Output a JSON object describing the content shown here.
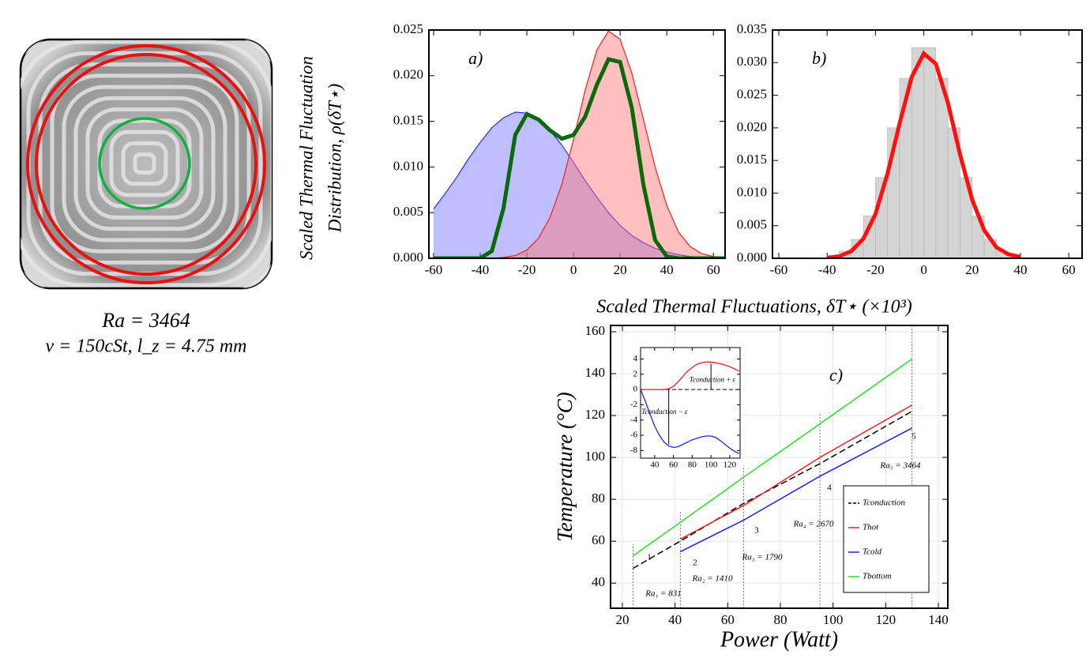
{
  "image_panel": {
    "caption_ra": "Ra = 3464",
    "caption_params": "ν = 150cSt, l_z = 4.75 mm"
  },
  "chart_data": [
    {
      "type": "line",
      "panel": "a)",
      "ylabel": [
        "Scaled Thermal Fluctuation",
        "Distribution, ρ(δT⋆)"
      ],
      "xlabel": "Scaled Thermal Fluctuations, δT⋆ (×10³)",
      "xlim": [
        -62,
        65
      ],
      "xticks": [
        -60,
        -40,
        -20,
        0,
        20,
        40,
        60
      ],
      "ylim": [
        0,
        0.025
      ],
      "yticks": [
        {
          "value": 0,
          "label": "0.000"
        },
        {
          "value": 0.005,
          "label": "0.005"
        },
        {
          "value": 0.01,
          "label": "0.010"
        },
        {
          "value": 0.015,
          "label": "0.015"
        },
        {
          "value": 0.02,
          "label": "0.020"
        },
        {
          "value": 0.025,
          "label": "0.025"
        }
      ],
      "x": [
        -60,
        -55,
        -50,
        -45,
        -40,
        -35,
        -30,
        -25,
        -20,
        -15,
        -10,
        -5,
        0,
        5,
        10,
        15,
        20,
        25,
        30,
        35,
        40,
        45,
        50,
        55,
        60,
        65
      ],
      "series": [
        {
          "color": "#2b2bf0",
          "fill": "#7070ff",
          "width": 1.2,
          "values": [
            0.0054,
            0.0071,
            0.0089,
            0.0109,
            0.0127,
            0.0143,
            0.0154,
            0.016,
            0.0159,
            0.0152,
            0.014,
            0.0124,
            0.0105,
            0.0085,
            0.0067,
            0.005,
            0.0036,
            0.0025,
            0.0017,
            0.0011,
            0.0007,
            0.0004,
            0.0002,
            0.0001,
            0.0001,
            0
          ]
        },
        {
          "color": "#ee2020",
          "fill": "#ff7070",
          "width": 1.2,
          "values": [
            0,
            0,
            0,
            0,
            0,
            0,
            0.0001,
            0.0003,
            0.0009,
            0.0022,
            0.0045,
            0.0081,
            0.013,
            0.0184,
            0.0228,
            0.0249,
            0.024,
            0.0203,
            0.0152,
            0.01,
            0.0058,
            0.0029,
            0.0013,
            0.0005,
            0.0002,
            0.0001
          ]
        },
        {
          "color": "#0a6a0a",
          "width": 5,
          "values": [
            0,
            0,
            0,
            0,
            0,
            0.0008,
            0.0055,
            0.0135,
            0.0158,
            0.0152,
            0.014,
            0.0131,
            0.0135,
            0.0155,
            0.019,
            0.0218,
            0.0215,
            0.0165,
            0.008,
            0.002,
            0.0002,
            0,
            0,
            0,
            0,
            0
          ]
        }
      ]
    },
    {
      "type": "histogram",
      "panel": "b)",
      "xlim": [
        -62.6,
        65.5
      ],
      "xticks": [
        -60,
        -40,
        -20,
        0,
        20,
        40,
        60
      ],
      "ylim": [
        0,
        0.035
      ],
      "yticks": [
        {
          "value": 0,
          "label": "0.000"
        },
        {
          "value": 0.005,
          "label": "0.005"
        },
        {
          "value": 0.01,
          "label": "0.010"
        },
        {
          "value": 0.015,
          "label": "0.015"
        },
        {
          "value": 0.02,
          "label": "0.020"
        },
        {
          "value": 0.025,
          "label": "0.025"
        },
        {
          "value": 0.03,
          "label": "0.030"
        },
        0.035
      ],
      "bins": [
        -40,
        -35,
        -30,
        -25,
        -20,
        -15,
        -10,
        -5,
        0,
        5,
        10,
        15,
        20,
        25,
        30,
        35,
        40
      ],
      "counts": [
        0.0004,
        0.0011,
        0.0029,
        0.0065,
        0.0124,
        0.02,
        0.0276,
        0.0323,
        0.0323,
        0.0276,
        0.02,
        0.0124,
        0.0065,
        0.0029,
        0.0011,
        0.0004
      ],
      "color": "#d4d4d4",
      "x": [
        -40,
        -35,
        -30,
        -25,
        -20,
        -15,
        -10,
        -5,
        0,
        5,
        10,
        15,
        20,
        25,
        30,
        35,
        40
      ],
      "series": [
        {
          "color": "#ff1010",
          "width": 5,
          "values": [
            0.0001,
            0.0003,
            0.0011,
            0.003,
            0.0068,
            0.013,
            0.0207,
            0.0278,
            0.0314,
            0.0298,
            0.0238,
            0.0159,
            0.009,
            0.0043,
            0.0017,
            0.0006,
            0.0002
          ]
        }
      ]
    },
    {
      "type": "line",
      "panel": "c)",
      "ylabel": "Temperature (°C)",
      "xlabel": "Power (Watt)",
      "grid": true,
      "legend": "lower right",
      "xlim": [
        15.5,
        143.6
      ],
      "xticks": [
        20,
        40,
        60,
        80,
        100,
        120,
        140
      ],
      "ylim": [
        28,
        163
      ],
      "yticks": [
        40,
        60,
        80,
        100,
        120,
        140,
        160
      ],
      "x": [
        24,
        42,
        66,
        95,
        130
      ],
      "series": [
        {
          "name": "Tconduction",
          "color": "#000000",
          "dashed": true,
          "width": 1.5,
          "values": [
            47,
            60,
            78,
            97,
            122
          ]
        },
        {
          "name": "Thot",
          "color": "#ee2020",
          "width": 1.5,
          "values": [
            null,
            61,
            77,
            100,
            125
          ]
        },
        {
          "name": "Tcold",
          "color": "#2020ee",
          "width": 1.5,
          "values": [
            null,
            55,
            70,
            91,
            114
          ]
        },
        {
          "name": "Tbottom",
          "color": "#20e020",
          "width": 1.5,
          "values": [
            53,
            69,
            90.5,
            116,
            147
          ]
        }
      ],
      "markers": [
        {
          "x": 24,
          "label": "1",
          "ra": "Ra₁ = 831"
        },
        {
          "x": 42,
          "label": "2",
          "ra": "Ra₂ = 1410"
        },
        {
          "x": 66,
          "label": "3",
          "ra": "Ra₃ = 1790"
        },
        {
          "x": 95,
          "label": "4",
          "ra": "Ra₄ = 2670"
        },
        {
          "x": 130,
          "label": "5",
          "ra": "Ra₅ = 3464"
        }
      ]
    },
    {
      "type": "line",
      "xlim": [
        25,
        131
      ],
      "xticks": [
        40,
        60,
        80,
        100,
        120
      ],
      "ylim": [
        -9,
        5.5
      ],
      "yticks": [
        4,
        2,
        0,
        -2,
        -4,
        -6,
        -8
      ],
      "zero_line": true,
      "annotations": [
        "Tconduction + ε",
        "Tconduction − ε"
      ],
      "x": [
        25,
        30,
        35,
        40,
        45,
        50,
        55,
        60,
        65,
        70,
        75,
        80,
        85,
        90,
        95,
        100,
        105,
        110,
        115,
        120,
        125,
        130
      ],
      "series": [
        {
          "color": "#ee2020",
          "width": 1.3,
          "values": [
            0,
            0,
            0,
            0,
            0,
            0,
            0.1,
            0.4,
            1.0,
            1.7,
            2.4,
            2.9,
            3.3,
            3.5,
            3.6,
            3.6,
            3.5,
            3.4,
            3.2,
            3.0,
            2.7,
            2.4
          ]
        },
        {
          "color": "#2020ee",
          "width": 1.3,
          "values": [
            0,
            -1.5,
            -3.2,
            -4.8,
            -6.0,
            -6.9,
            -7.4,
            -7.6,
            -7.5,
            -7.2,
            -6.9,
            -6.6,
            -6.4,
            -6.2,
            -6.1,
            -6.1,
            -6.3,
            -6.7,
            -7.2,
            -7.7,
            -8.1,
            -8.4
          ]
        }
      ]
    }
  ]
}
